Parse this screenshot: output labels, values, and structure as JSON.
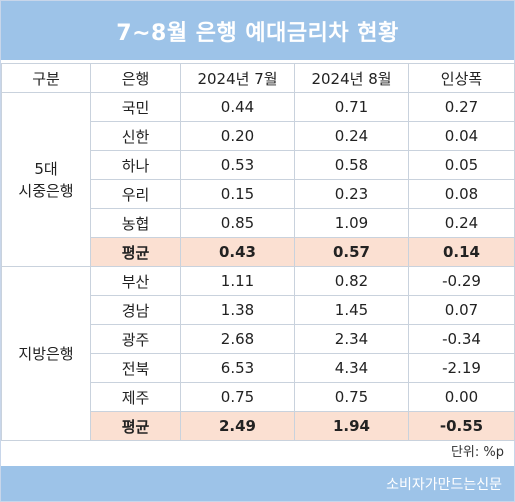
{
  "title": "7~8월 은행 예대금리차 현황",
  "headers": [
    "구분",
    "은행",
    "2024년 7월",
    "2024년 8월",
    "인상폭"
  ],
  "groups": [
    {
      "label_line1": "5대",
      "label_line2": "시중은행",
      "rows": [
        {
          "bank": "국민",
          "jul": "0.44",
          "aug": "0.71",
          "diff": "0.27"
        },
        {
          "bank": "신한",
          "jul": "0.20",
          "aug": "0.24",
          "diff": "0.04"
        },
        {
          "bank": "하나",
          "jul": "0.53",
          "aug": "0.58",
          "diff": "0.05"
        },
        {
          "bank": "우리",
          "jul": "0.15",
          "aug": "0.23",
          "diff": "0.08"
        },
        {
          "bank": "농협",
          "jul": "0.85",
          "aug": "1.09",
          "diff": "0.24"
        }
      ],
      "avg": {
        "label": "평균",
        "jul": "0.43",
        "aug": "0.57",
        "diff": "0.14"
      }
    },
    {
      "label_line1": "지방은행",
      "label_line2": "",
      "rows": [
        {
          "bank": "부산",
          "jul": "1.11",
          "aug": "0.82",
          "diff": "-0.29"
        },
        {
          "bank": "경남",
          "jul": "1.38",
          "aug": "1.45",
          "diff": "0.07"
        },
        {
          "bank": "광주",
          "jul": "2.68",
          "aug": "2.34",
          "diff": "-0.34"
        },
        {
          "bank": "전북",
          "jul": "6.53",
          "aug": "4.34",
          "diff": "-2.19"
        },
        {
          "bank": "제주",
          "jul": "0.75",
          "aug": "0.75",
          "diff": "0.00"
        }
      ],
      "avg": {
        "label": "평균",
        "jul": "2.49",
        "aug": "1.94",
        "diff": "-0.55"
      }
    }
  ],
  "unit": "단위: %p",
  "footer": "소비자가만드는신문",
  "colors": {
    "banner": "#9dc3e8",
    "avg_row": "#fbe0d2",
    "grid": "#c9d2dd"
  }
}
